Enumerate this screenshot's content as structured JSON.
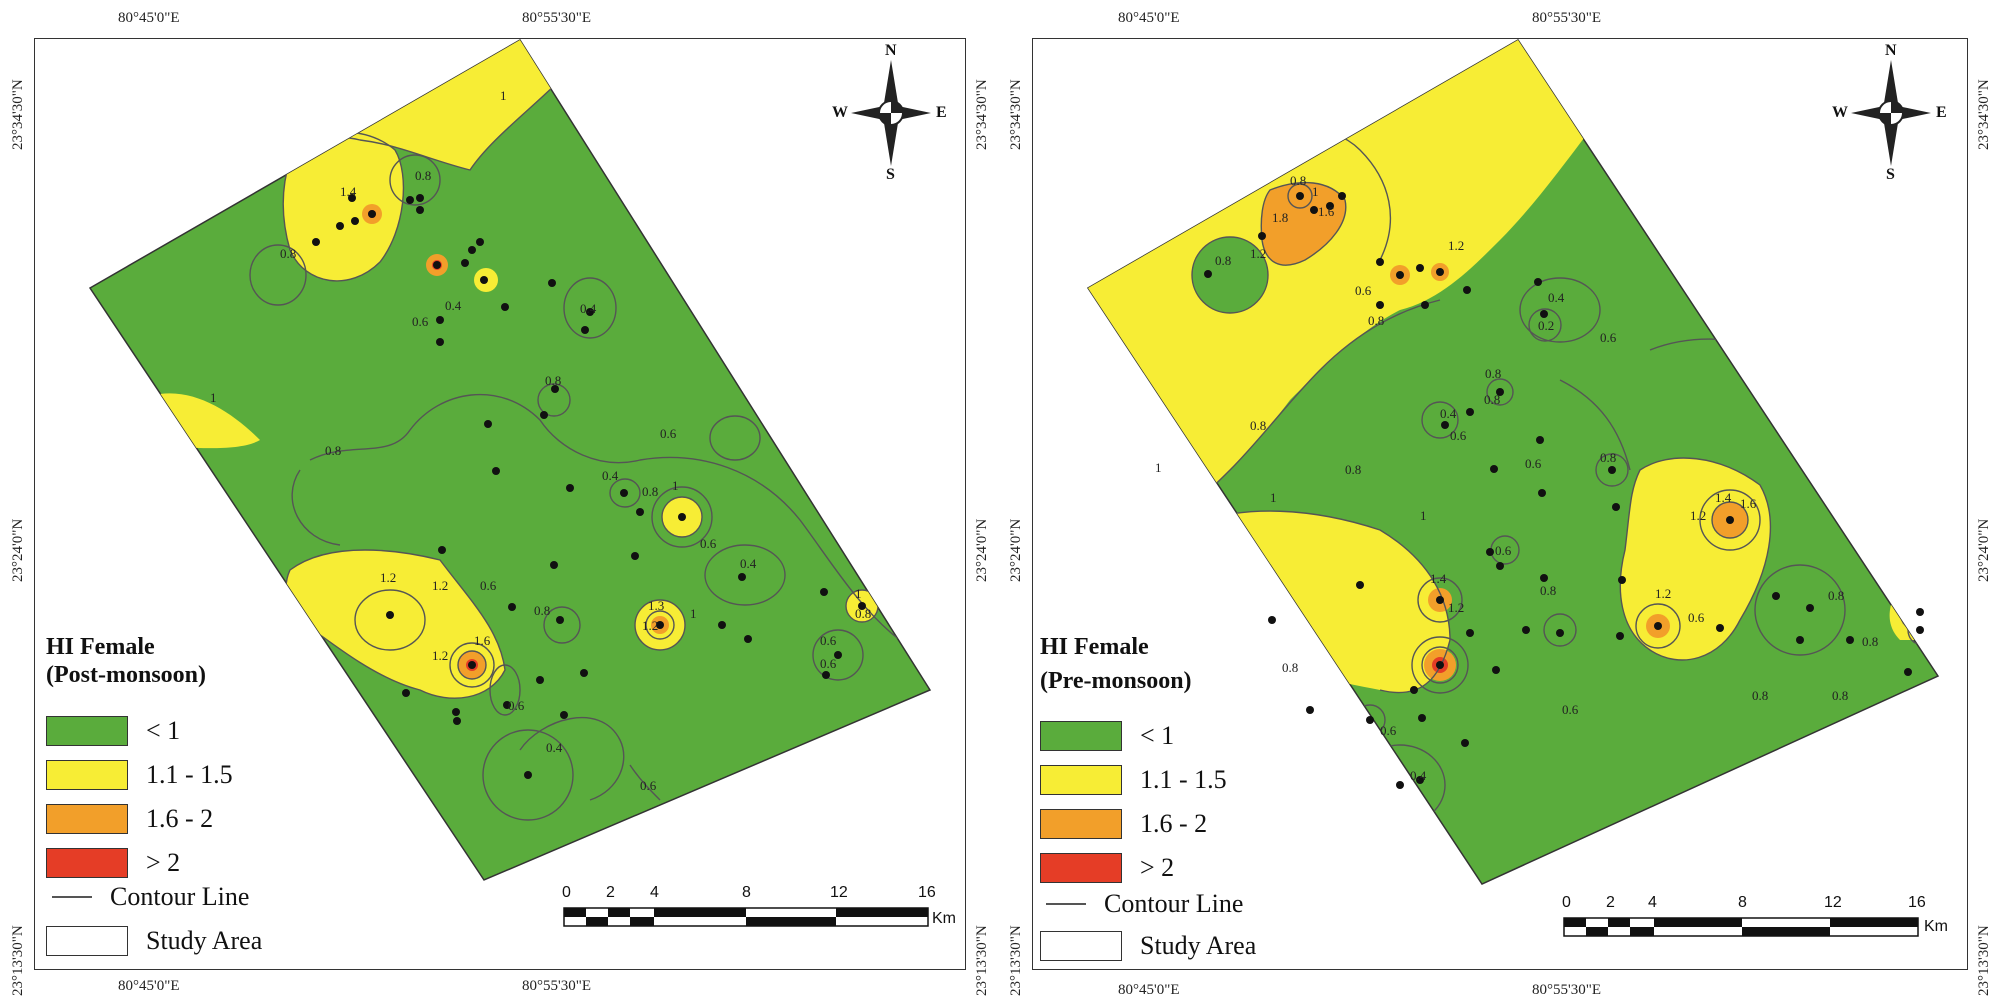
{
  "colors": {
    "green": "#5aac3c",
    "yellow": "#f7ed35",
    "orange": "#f29f2a",
    "red": "#e53d26",
    "contour": "#555555"
  },
  "graticule": {
    "lon_left": "80°45'0\"E",
    "lon_right": "80°55'30\"E",
    "lat_top": "23°34'30\"N",
    "lat_mid": "23°24'0\"N",
    "lat_bottom": "23°13'30\"N"
  },
  "compass": {
    "n": "N",
    "s": "S",
    "e": "E",
    "w": "W"
  },
  "scale": {
    "ticks": [
      "0",
      "2",
      "4",
      "8",
      "12",
      "16"
    ],
    "unit": "Km"
  },
  "legend_items": {
    "class_lt1": "< 1",
    "class_1_1_5": "1.1 - 1.5",
    "class_1_6_2": "1.6 - 2",
    "class_gt2": "> 2",
    "contour": "Contour Line",
    "study_area": "Study Area"
  },
  "maps": [
    {
      "title_line1": "HI Female",
      "title_line2": "(Post-monsoon)",
      "contour_labels": [
        "1",
        "1.4",
        "0.8",
        "0.8",
        "0.6",
        "0.4",
        "0.4",
        "0.8",
        "1",
        "0.8",
        "0.6",
        "0.4",
        "0.8",
        "1",
        "1.2",
        "1.2",
        "0.6",
        "1.2",
        "1.6",
        "1.2",
        "0.8",
        "0.4",
        "0.6",
        "0.6",
        "1.3",
        "1",
        "0.4",
        "0.6",
        "0.6",
        "1",
        "0.8",
        "0.6"
      ]
    },
    {
      "title_line1": "HI Female",
      "title_line2": "(Pre-monsoon)",
      "contour_labels": [
        "0.8",
        "1",
        "1.8",
        "1.6",
        "1.2",
        "0.8",
        "0.6",
        "0.8",
        "1.2",
        "0.4",
        "0.2",
        "0.6",
        "0.8",
        "0.8",
        "0.4",
        "0.6",
        "1",
        "0.8",
        "0.6",
        "0.8",
        "1",
        "1.4",
        "1.2",
        "1.6",
        "0.8",
        "0.6",
        "0.8",
        "1.2",
        "0.6",
        "0.8",
        "0.8",
        "1.4",
        "1.2",
        "0.8",
        "0.6",
        "0.6",
        "0.4",
        "0.8",
        "0.8",
        "1"
      ]
    }
  ]
}
